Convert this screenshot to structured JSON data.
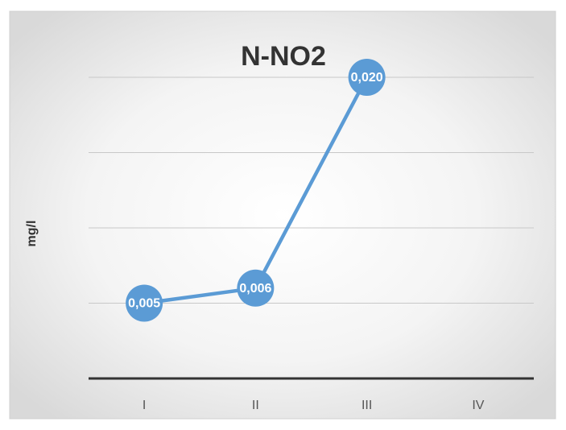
{
  "chart_data": {
    "type": "line",
    "title": "N-NO2",
    "y_label": "mg/l",
    "categories": [
      "I",
      "II",
      "III",
      "IV"
    ],
    "values": [
      0.005,
      0.006,
      0.02,
      null
    ],
    "value_labels": [
      "0,005",
      "0,006",
      "0,020",
      null
    ],
    "color": "#5b9bd5",
    "ylim": [
      0,
      0.02
    ],
    "yticks": [
      0,
      0.005,
      0.01,
      0.015,
      0.02
    ],
    "grid": true
  }
}
